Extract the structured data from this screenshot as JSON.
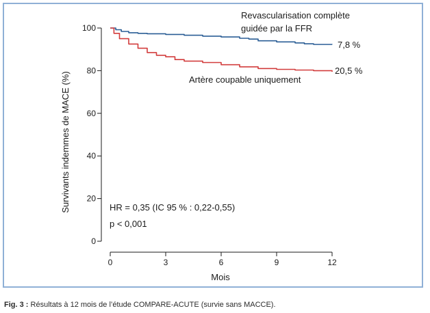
{
  "caption": {
    "prefix": "Fig. 3 :",
    "text": " Résultats à 12 mois de l’étude COMPARE-ACUTE (survie sans MACCE)."
  },
  "chart_data": {
    "type": "line",
    "xlabel": "Mois",
    "ylabel": "Survivants indemmes de MACE (%)",
    "xlim": [
      0,
      12
    ],
    "ylim": [
      0,
      100
    ],
    "xticks": [
      "0",
      "3",
      "6",
      "9",
      "12"
    ],
    "yticks": [
      "0",
      "20",
      "40",
      "60",
      "80",
      "100"
    ],
    "grid": false,
    "series": [
      {
        "name_line1": "Revascularisation complète",
        "name_line2": "guidée par la FFR",
        "end_label": "7,8 %",
        "color": "#2a5d95",
        "points": [
          [
            0,
            100
          ],
          [
            0.3,
            99.2
          ],
          [
            0.6,
            98.4
          ],
          [
            1.0,
            97.8
          ],
          [
            1.5,
            97.5
          ],
          [
            2.0,
            97.3
          ],
          [
            3.0,
            97.0
          ],
          [
            4.0,
            96.6
          ],
          [
            5.0,
            96.2
          ],
          [
            6.0,
            95.8
          ],
          [
            7.0,
            95.2
          ],
          [
            7.5,
            94.8
          ],
          [
            8.0,
            94.0
          ],
          [
            9.0,
            93.5
          ],
          [
            10.0,
            93.0
          ],
          [
            10.5,
            92.6
          ],
          [
            11.0,
            92.3
          ],
          [
            12.0,
            92.2
          ]
        ]
      },
      {
        "name": "Artère coupable uniquement",
        "end_label": "20,5 %",
        "color": "#d23c3c",
        "points": [
          [
            0,
            100
          ],
          [
            0.2,
            97.5
          ],
          [
            0.5,
            95.0
          ],
          [
            1.0,
            92.5
          ],
          [
            1.5,
            90.5
          ],
          [
            2.0,
            88.5
          ],
          [
            2.5,
            87.2
          ],
          [
            3.0,
            86.5
          ],
          [
            3.5,
            85.2
          ],
          [
            4.0,
            84.5
          ],
          [
            5.0,
            83.8
          ],
          [
            6.0,
            82.8
          ],
          [
            7.0,
            81.8
          ],
          [
            8.0,
            81.0
          ],
          [
            9.0,
            80.6
          ],
          [
            10.0,
            80.3
          ],
          [
            11.0,
            80.0
          ],
          [
            12.0,
            79.5
          ]
        ]
      }
    ],
    "annotations": {
      "hr": "HR  = 0,35 (IC 95 % : 0,22-0,55)",
      "p": "p < 0,001"
    }
  }
}
